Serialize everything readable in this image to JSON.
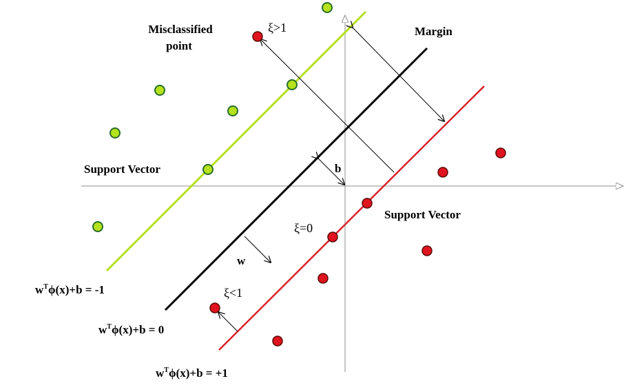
{
  "colors": {
    "green_line": "#b5e01f",
    "black_line": "#000000",
    "red_line": "#d9212b",
    "green_point": "#b4e21c",
    "red_point": "#e0141e",
    "point_stroke": "#2a6e2a",
    "red_stroke": "#5a0a0a",
    "axis": "#8c8c8c",
    "arrow": "#000000"
  },
  "labels": {
    "misclassified_line1": "Misclassified",
    "misclassified_line2": "point",
    "xi_gt1": "ξ>1",
    "margin": "Margin",
    "support_vector_left": "Support Vector",
    "support_vector_right": "Support Vector",
    "b": "b",
    "xi_eq0": "ξ=0",
    "w": "w",
    "xi_lt1": "ξ<1",
    "eq_minus1_pre": "w",
    "eq_minus1_sup": "T",
    "eq_minus1_post": "ϕ(x)+b = -1",
    "eq_zero_pre": "w",
    "eq_zero_sup": "T",
    "eq_zero_post": "ϕ(x)+b = 0",
    "eq_plus1_pre": "w",
    "eq_plus1_sup": "T",
    "eq_plus1_post": "ϕ(x)+b = +1"
  }
}
